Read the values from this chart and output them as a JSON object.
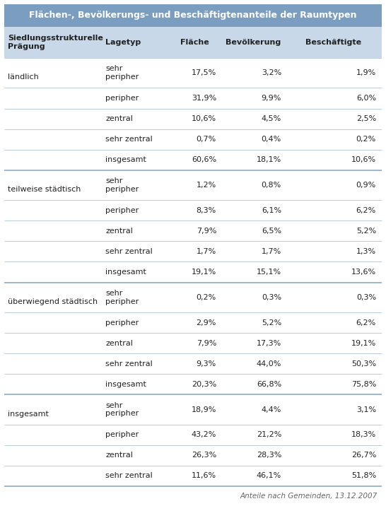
{
  "title": "Flächen-, Bevölkerungs- und Beschäftigtenanteile der Raumtypen",
  "title_bg": "#7a9dc0",
  "title_color": "#ffffff",
  "header_bg": "#c8d8e8",
  "header_color": "#222222",
  "body_bg": "#ffffff",
  "row_bg": "#ffffff",
  "row_line_color": "#b0c4d8",
  "group_line_color": "#8aacc8",
  "text_color": "#222222",
  "footer_text": "Anteile nach Gemeinden, 13.12.2007",
  "footer_color": "#666666",
  "col_headers": [
    "Siedlungsstrukturelle\nPrägung",
    "Lagetyp",
    "Fläche",
    "Bevölkerung",
    "Beschäftigte"
  ],
  "rows": [
    {
      "group": "ländlich",
      "lagetyp": "sehr\nperipher",
      "f": "17,5%",
      "b": "3,2%",
      "e": "1,9%",
      "gs": true,
      "tall": true
    },
    {
      "group": "",
      "lagetyp": "peripher",
      "f": "31,9%",
      "b": "9,9%",
      "e": "6,0%",
      "gs": false,
      "tall": false
    },
    {
      "group": "",
      "lagetyp": "zentral",
      "f": "10,6%",
      "b": "4,5%",
      "e": "2,5%",
      "gs": false,
      "tall": false
    },
    {
      "group": "",
      "lagetyp": "sehr zentral",
      "f": "0,7%",
      "b": "0,4%",
      "e": "0,2%",
      "gs": false,
      "tall": false
    },
    {
      "group": "",
      "lagetyp": "insgesamt",
      "f": "60,6%",
      "b": "18,1%",
      "e": "10,6%",
      "gs": false,
      "tall": false
    },
    {
      "group": "teilweise städtisch",
      "lagetyp": "sehr\nperipher",
      "f": "1,2%",
      "b": "0,8%",
      "e": "0,9%",
      "gs": true,
      "tall": true
    },
    {
      "group": "",
      "lagetyp": "peripher",
      "f": "8,3%",
      "b": "6,1%",
      "e": "6,2%",
      "gs": false,
      "tall": false
    },
    {
      "group": "",
      "lagetyp": "zentral",
      "f": "7,9%",
      "b": "6,5%",
      "e": "5,2%",
      "gs": false,
      "tall": false
    },
    {
      "group": "",
      "lagetyp": "sehr zentral",
      "f": "1,7%",
      "b": "1,7%",
      "e": "1,3%",
      "gs": false,
      "tall": false
    },
    {
      "group": "",
      "lagetyp": "insgesamt",
      "f": "19,1%",
      "b": "15,1%",
      "e": "13,6%",
      "gs": false,
      "tall": false
    },
    {
      "group": "überwiegend städtisch",
      "lagetyp": "sehr\nperipher",
      "f": "0,2%",
      "b": "0,3%",
      "e": "0,3%",
      "gs": true,
      "tall": true
    },
    {
      "group": "",
      "lagetyp": "peripher",
      "f": "2,9%",
      "b": "5,2%",
      "e": "6,2%",
      "gs": false,
      "tall": false
    },
    {
      "group": "",
      "lagetyp": "zentral",
      "f": "7,9%",
      "b": "17,3%",
      "e": "19,1%",
      "gs": false,
      "tall": false
    },
    {
      "group": "",
      "lagetyp": "sehr zentral",
      "f": "9,3%",
      "b": "44,0%",
      "e": "50,3%",
      "gs": false,
      "tall": false
    },
    {
      "group": "",
      "lagetyp": "insgesamt",
      "f": "20,3%",
      "b": "66,8%",
      "e": "75,8%",
      "gs": false,
      "tall": false
    },
    {
      "group": "insgesamt",
      "lagetyp": "sehr\nperipher",
      "f": "18,9%",
      "b": "4,4%",
      "e": "3,1%",
      "gs": true,
      "tall": true
    },
    {
      "group": "",
      "lagetyp": "peripher",
      "f": "43,2%",
      "b": "21,2%",
      "e": "18,3%",
      "gs": false,
      "tall": false
    },
    {
      "group": "",
      "lagetyp": "zentral",
      "f": "26,3%",
      "b": "28,3%",
      "e": "26,7%",
      "gs": false,
      "tall": false
    },
    {
      "group": "",
      "lagetyp": "sehr zentral",
      "f": "11,6%",
      "b": "46,1%",
      "e": "51,8%",
      "gs": false,
      "tall": false
    }
  ]
}
